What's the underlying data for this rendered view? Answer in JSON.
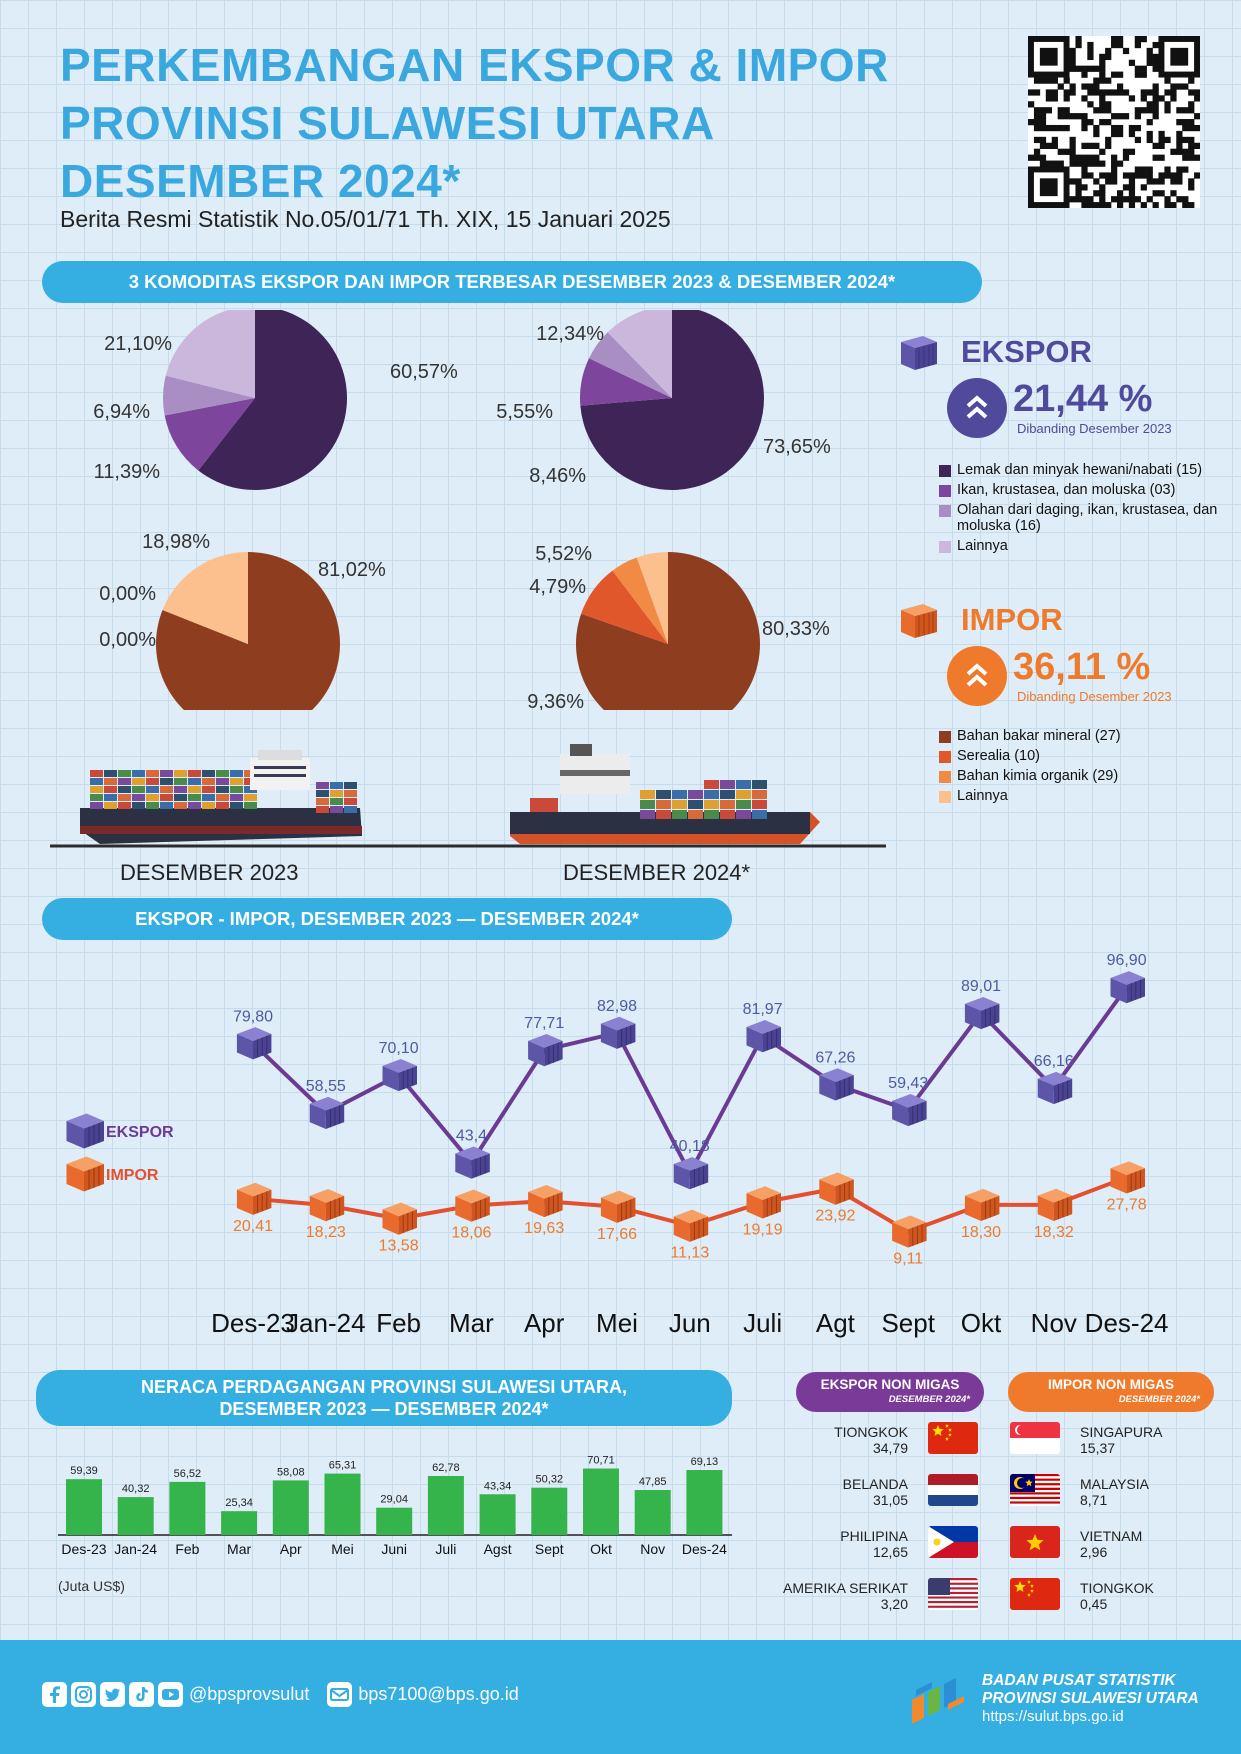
{
  "header": {
    "title_line1": "PERKEMBANGAN EKSPOR & IMPOR",
    "title_line2": "PROVINSI SULAWESI UTARA",
    "title_line3": "DESEMBER 2024*",
    "subtitle": "Berita Resmi Statistik No.05/01/71 Th. XIX, 15 Januari 2025"
  },
  "section1": {
    "title": "3 KOMODITAS EKSPOR DAN IMPOR TERBESAR DESEMBER 2023 & DESEMBER 2024*"
  },
  "section2": {
    "title": "EKSPOR - IMPOR, DESEMBER 2023 — DESEMBER 2024*"
  },
  "section3": {
    "title_line1": "NERACA PERDAGANGAN PROVINSI SULAWESI UTARA,",
    "title_line2": "DESEMBER 2023 — DESEMBER 2024*",
    "unit": "(Juta US$)"
  },
  "ekspor_summary": {
    "title": "EKSPOR",
    "pct": "21,44 %",
    "note": "Dibanding Desember 2023",
    "legend": [
      "Lemak dan minyak hewani/nabati (15)",
      "Ikan, krustasea, dan moluska (03)",
      "Olahan dari daging, ikan, krustasea, dan moluska (16)",
      "Lainnya"
    ],
    "colors": [
      "#3e2457",
      "#7e459c",
      "#a98ec4",
      "#cbb7dc"
    ]
  },
  "impor_summary": {
    "title": "IMPOR",
    "pct": "36,11 %",
    "note": "Dibanding Desember 2023",
    "legend": [
      "Bahan bakar mineral (27)",
      "Serealia (10)",
      "Bahan kimia organik (29)",
      "Lainnya"
    ],
    "colors": [
      "#8e3e1f",
      "#e0572b",
      "#f18a45",
      "#fcc08e"
    ]
  },
  "ships": {
    "caption_2023": "DESEMBER 2023",
    "caption_2024": "DESEMBER 2024*"
  },
  "chart_data": [
    {
      "type": "pie",
      "title": "",
      "period": "DESEMBER 2023",
      "group": "EKSPOR",
      "categories": [
        "Lemak dan minyak hewani/nabati (15)",
        "Ikan, krustasea, dan moluska (03)",
        "Olahan dari daging, ikan, krustasea, dan moluska (16)",
        "Lainnya"
      ],
      "values": [
        60.57,
        11.39,
        6.94,
        21.1
      ],
      "labels": [
        "60,57%",
        "11,39%",
        "6,94%",
        "21,10%"
      ]
    },
    {
      "type": "pie",
      "title": "",
      "period": "DESEMBER 2024*",
      "group": "EKSPOR",
      "categories": [
        "Lemak dan minyak hewani/nabati (15)",
        "Ikan, krustasea, dan moluska (03)",
        "Olahan dari daging, ikan, krustasea, dan moluska (16)",
        "Lainnya"
      ],
      "values": [
        73.65,
        8.46,
        5.55,
        12.34
      ],
      "labels": [
        "73,65%",
        "8,46%",
        "5,55%",
        "12,34%"
      ]
    },
    {
      "type": "pie",
      "title": "",
      "period": "DESEMBER 2023",
      "group": "IMPOR",
      "categories": [
        "Bahan bakar mineral (27)",
        "Serealia (10)",
        "Bahan kimia organik (29)",
        "Lainnya"
      ],
      "values": [
        81.02,
        0.0,
        0.0,
        18.98
      ],
      "labels": [
        "81,02%",
        "0,00%",
        "0,00%",
        "18,98%"
      ]
    },
    {
      "type": "pie",
      "title": "",
      "period": "DESEMBER 2024*",
      "group": "IMPOR",
      "categories": [
        "Bahan bakar mineral (27)",
        "Serealia (10)",
        "Bahan kimia organik (29)",
        "Lainnya"
      ],
      "values": [
        80.33,
        9.36,
        4.79,
        5.52
      ],
      "labels": [
        "80,33%",
        "9,36%",
        "4,79%",
        "5,52%"
      ]
    },
    {
      "type": "line",
      "title": "EKSPOR - IMPOR, DESEMBER 2023 — DESEMBER 2024*",
      "categories": [
        "Des-23",
        "Jan-24",
        "Feb",
        "Mar",
        "Apr",
        "Mei",
        "Jun",
        "Juli",
        "Agt",
        "Sept",
        "Okt",
        "Nov",
        "Des-24"
      ],
      "series": [
        {
          "name": "EKSPOR",
          "values": [
            79.8,
            58.55,
            70.1,
            43.4,
            77.71,
            82.98,
            40.18,
            81.97,
            67.26,
            59.43,
            89.01,
            66.16,
            96.9
          ],
          "labels": [
            "79,80",
            "58,55",
            "70,10",
            "43,4",
            "77,71",
            "82,98",
            "40,18",
            "81,97",
            "67,26",
            "59,43",
            "89,01",
            "66,16",
            "96,90"
          ],
          "color": "#6b3a93"
        },
        {
          "name": "IMPOR",
          "values": [
            20.41,
            18.23,
            13.58,
            18.06,
            19.63,
            17.66,
            11.13,
            19.19,
            23.92,
            9.11,
            18.3,
            18.32,
            27.78
          ],
          "labels": [
            "20,41",
            "18,23",
            "13,58",
            "18,06",
            "19,63",
            "17,66",
            "11,13",
            "19,19",
            "23,92",
            "9,11",
            "18,30",
            "18,32",
            "27,78"
          ],
          "color": "#e4502f"
        }
      ]
    },
    {
      "type": "bar",
      "title": "NERACA PERDAGANGAN PROVINSI SULAWESI UTARA, DESEMBER 2023 — DESEMBER 2024*",
      "categories": [
        "Des-23",
        "Jan-24",
        "Feb",
        "Mar",
        "Apr",
        "Mei",
        "Juni",
        "Juli",
        "Agst",
        "Sept",
        "Okt",
        "Nov",
        "Des-24"
      ],
      "values": [
        59.39,
        40.32,
        56.52,
        25.34,
        58.08,
        65.31,
        29.04,
        62.78,
        43.34,
        50.32,
        70.71,
        47.85,
        69.13
      ],
      "labels": [
        "59,39",
        "40,32",
        "56,52",
        "25,34",
        "58,08",
        "65,31",
        "29,04",
        "62,78",
        "43,34",
        "50,32",
        "70,71",
        "47,85",
        "69,13"
      ],
      "ylabel": "(Juta US$)",
      "color": "#34b44a"
    }
  ],
  "trade_partners": {
    "ekspor_head": "EKSPOR NON MIGAS",
    "impor_head": "IMPOR NON MIGAS",
    "head_period": "DESEMBER 2024*",
    "ekspor": [
      {
        "country": "TIONGKOK",
        "value": "34,79",
        "flag": "china-flag"
      },
      {
        "country": "BELANDA",
        "value": "31,05",
        "flag": "netherlands-flag"
      },
      {
        "country": "PHILIPINA",
        "value": "12,65",
        "flag": "philippines-flag"
      },
      {
        "country": "AMERIKA SERIKAT",
        "value": "3,20",
        "flag": "usa-flag"
      }
    ],
    "impor": [
      {
        "country": "SINGAPURA",
        "value": "15,37",
        "flag": "singapore-flag"
      },
      {
        "country": "MALAYSIA",
        "value": "8,71",
        "flag": "malaysia-flag"
      },
      {
        "country": "VIETNAM",
        "value": "2,96",
        "flag": "vietnam-flag"
      },
      {
        "country": "TIONGKOK",
        "value": "0,45",
        "flag": "china-flag"
      }
    ]
  },
  "footer": {
    "social_handle": "@bpsprovsulut",
    "email": "bps7100@bps.go.id",
    "org_line1": "BADAN PUSAT STATISTIK",
    "org_line2": "PROVINSI SULAWESI UTARA",
    "url": "https://sulut.bps.go.id",
    "icons": [
      "facebook-icon",
      "instagram-icon",
      "twitter-icon",
      "tiktok-icon",
      "youtube-icon",
      "email-icon",
      "bps-logo"
    ]
  },
  "colors": {
    "accent": "#35aee2",
    "ekspor": "#6b3a93",
    "impor": "#e4502f",
    "balance": "#34b44a",
    "title": "#3aa8df"
  }
}
